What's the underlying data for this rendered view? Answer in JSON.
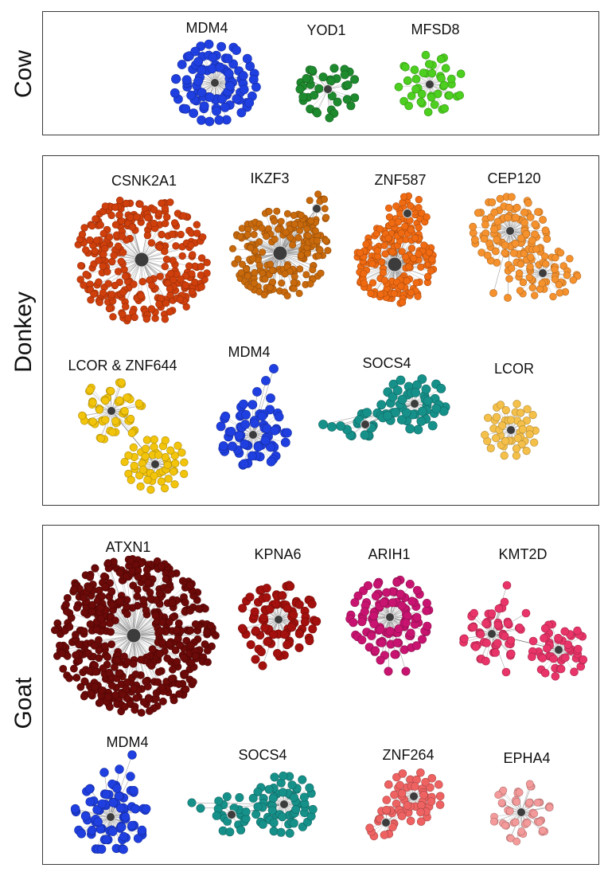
{
  "panels": [
    {
      "species": "Cow",
      "networks": [
        {
          "gene": "MDM4",
          "color": "#1f3fe0",
          "style": "dense"
        },
        {
          "gene": "YOD1",
          "color": "#1e8a2e",
          "style": "sparse"
        },
        {
          "gene": "MFSD8",
          "color": "#4ccf1f",
          "style": "ring"
        }
      ]
    },
    {
      "species": "Donkey",
      "networks": [
        {
          "gene": "CSNK2A1",
          "color": "#cf3f0c",
          "style": "cloud"
        },
        {
          "gene": "IKZF3",
          "color": "#c8690c",
          "style": "cloud"
        },
        {
          "gene": "ZNF587",
          "color": "#f06a12",
          "style": "twin"
        },
        {
          "gene": "CEP120",
          "color": "#f5922e",
          "style": "twin"
        },
        {
          "gene": "LCOR & ZNF644",
          "color": "#f2c40c",
          "style": "twin"
        },
        {
          "gene": "MDM4",
          "color": "#1f3fe0",
          "style": "dense"
        },
        {
          "gene": "SOCS4",
          "color": "#16918a",
          "style": "chain"
        },
        {
          "gene": "LCOR",
          "color": "#f5c04a",
          "style": "ring"
        }
      ]
    },
    {
      "species": "Goat",
      "networks": [
        {
          "gene": "ATXN1",
          "color": "#6b0a08",
          "style": "cloud"
        },
        {
          "gene": "KPNA6",
          "color": "#a3100d",
          "style": "dense"
        },
        {
          "gene": "ARIH1",
          "color": "#c81470",
          "style": "dense"
        },
        {
          "gene": "KMT2D",
          "color": "#e83468",
          "style": "twin"
        },
        {
          "gene": "MDM4",
          "color": "#1f3fe0",
          "style": "dense"
        },
        {
          "gene": "SOCS4",
          "color": "#16918a",
          "style": "chain"
        },
        {
          "gene": "ZNF264",
          "color": "#ee6262",
          "style": "twin"
        },
        {
          "gene": "EPHA4",
          "color": "#f49a9a",
          "style": "ring"
        }
      ]
    }
  ]
}
